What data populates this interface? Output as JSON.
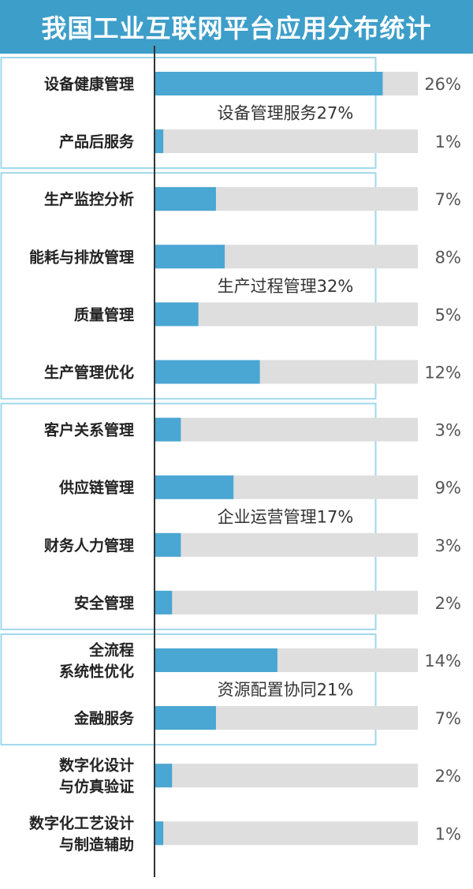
{
  "title": "我国工业互联网平台应用分布统计",
  "chart_data": {
    "type": "bar",
    "orientation": "horizontal",
    "categories": [
      "设备健康管理",
      "产品后服务",
      "生产监控分析",
      "能耗与排放管理",
      "质量管理",
      "生产管理优化",
      "客户关系管理",
      "供应链管理",
      "财务人力管理",
      "安全管理",
      "全流程\n系统性优化",
      "金融服务",
      "数字化设计\n与仿真验证",
      "数字化工艺设计\n与制造辅助"
    ],
    "values": [
      26,
      1,
      7,
      8,
      5,
      12,
      3,
      9,
      3,
      2,
      14,
      7,
      2,
      1
    ],
    "value_labels": [
      "26%",
      "1%",
      "7%",
      "8%",
      "5%",
      "12%",
      "3%",
      "9%",
      "3%",
      "2%",
      "14%",
      "7%",
      "2%",
      "1%"
    ],
    "xlim": [
      0,
      30
    ],
    "groups": [
      {
        "label": "设备管理服务27%",
        "start": 0,
        "end": 1
      },
      {
        "label": "生产过程管理32%",
        "start": 2,
        "end": 5
      },
      {
        "label": "企业运营管理17%",
        "start": 6,
        "end": 9
      },
      {
        "label": "资源配置协同21%",
        "start": 10,
        "end": 11
      }
    ],
    "colors": {
      "bar": "#4aa6d2",
      "track": "#dedede",
      "group_border": "#9fd8ea",
      "axis": "#333333"
    }
  }
}
